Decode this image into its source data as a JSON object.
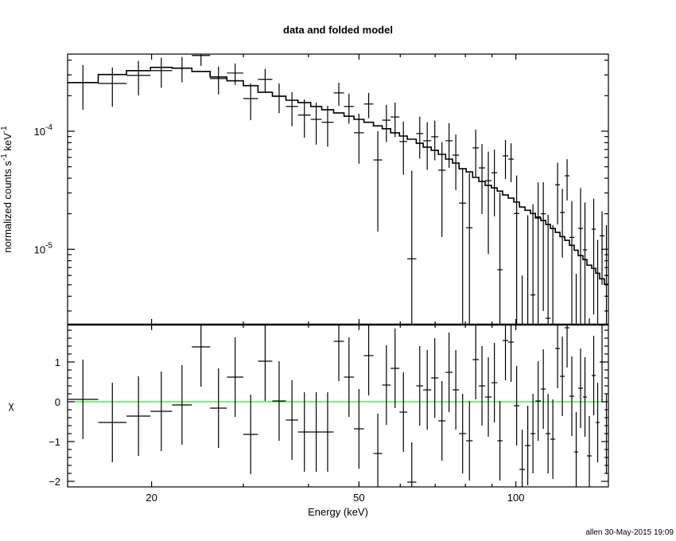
{
  "chart_data": [
    {
      "panel": "spectrum",
      "type": "line",
      "title": "data and folded model",
      "xlabel": "Energy (keV)",
      "ylabel": {
        "parts": [
          [
            "normalized counts s",
            ""
          ],
          [
            "-1",
            "sup"
          ],
          [
            " keV",
            ""
          ],
          [
            "-1",
            "sup"
          ]
        ]
      },
      "xscale": "log",
      "yscale": "log",
      "xlim": [
        13.8,
        150.5
      ],
      "ylim": [
        2.3e-06,
        0.00045
      ],
      "x_tick_labels": [
        {
          "value": 20,
          "label": "20"
        },
        {
          "value": 50,
          "label": "50"
        },
        {
          "value": 100,
          "label": "100"
        }
      ],
      "y_tick_labels": [
        {
          "value": 0.0001,
          "base": "10",
          "exp": "-4"
        },
        {
          "value": 1e-05,
          "base": "10",
          "exp": "-5"
        }
      ],
      "bin_edges": [
        13.8,
        15.8,
        17.9,
        19.9,
        21.9,
        23.9,
        25.9,
        27.9,
        30.0,
        32.0,
        34.1,
        36.2,
        38.2,
        40.4,
        42.4,
        44.7,
        46.8,
        48.9,
        51.1,
        53.3,
        55.4,
        57.5,
        59.8,
        61.9,
        64.4,
        66.4,
        68.8,
        71.0,
        73.3,
        75.6,
        77.8,
        80.3,
        82.6,
        84.9,
        87.3,
        89.8,
        92.1,
        94.3,
        96.7,
        99.1,
        101.6,
        104.1,
        106.7,
        109.0,
        111.7,
        114.1,
        116.5,
        119.0,
        121.5,
        124.1,
        126.7,
        129.4,
        131.7,
        134.5,
        136.9,
        139.8,
        142.3,
        144.8,
        147.9,
        150.5
      ],
      "data": [
        0.000258,
        0.000254,
        0.000297,
        0.000326,
        0.000342,
        0.000438,
        0.000279,
        0.000311,
        0.000189,
        0.000275,
        0.000198,
        0.000162,
        0.000137,
        0.000126,
        0.000119,
        0.000211,
        0.000162,
        9.7e-05,
        0.00017,
        5.71e-05,
        0.000124,
        0.000132,
        8.17e-05,
        8.3e-06,
        9.55e-05,
        8.3e-05,
        8.97e-05,
        4.67e-05,
        8.3e-05,
        6.27e-05,
        2.46e-05,
        1.52e-05,
        7.22e-05,
        4.89e-05,
        3.81e-05,
        4.45e-05,
        6.7e-06,
        6.18e-05,
        5.8e-05,
        2.01e-05,
        -1.9e-05,
        -6e-07,
        4.1e-06,
        1.88e-05,
        2e-05,
        2.6e-06,
        0,
        3.52e-05,
        2.05e-05,
        4.19e-05,
        1.26e-05,
        -7.8e-06,
        1.5e-05,
        9.9e-06,
        -1.04e-05,
        1.48e-05,
        0,
        1.3e-05,
        6e-06
      ],
      "errors": [
        0.000106,
        9.3e-05,
        9.6e-05,
        9.3e-05,
        8.3e-05,
        8e-05,
        7.4e-05,
        6.4e-05,
        6.5e-05,
        6.2e-05,
        5.6e-05,
        5.2e-05,
        4.9e-05,
        4.9e-05,
        4.5e-05,
        4.7e-05,
        4.6e-05,
        4.4e-05,
        4.1e-05,
        4.3e-05,
        4.3e-05,
        4.3e-05,
        3.9e-05,
        3.8e-05,
        3.7e-05,
        3.6e-05,
        3.3e-05,
        3.4e-05,
        3.4e-05,
        3.1e-05,
        2.35e-05,
        2.9e-05,
        3.1e-05,
        2.9e-05,
        2.9e-05,
        2.55e-05,
        2.35e-05,
        2.25e-05,
        2.1e-05,
        2.2e-05,
        2.5e-05,
        2e-05,
        2e-05,
        1.8e-05,
        1.7e-05,
        1.7e-05,
        1.6e-05,
        1.9e-05,
        1.2e-05,
        1.6e-05,
        1.3e-05,
        1.4e-05,
        1.8e-05,
        1.5e-05,
        1.3e-05,
        1.2e-05,
        1.2e-05,
        8e-06,
        1e-05
      ],
      "model": [
        0.000258,
        0.000302,
        0.000326,
        0.000347,
        0.000342,
        0.000321,
        0.000288,
        0.000267,
        0.000243,
        0.000214,
        0.000198,
        0.000183,
        0.000175,
        0.000162,
        0.000152,
        0.000143,
        0.000134,
        0.000126,
        0.000119,
        0.000111,
        0.000105,
        9.7e-05,
        9.1e-05,
        8.55e-05,
        7.9e-05,
        7.33e-05,
        6.89e-05,
        6.37e-05,
        5.8e-05,
        5.37e-05,
        4.81e-05,
        4.52e-05,
        4.06e-05,
        3.75e-05,
        3.47e-05,
        3.31e-05,
        3.11e-05,
        2.88e-05,
        2.71e-05,
        2.51e-05,
        2.28e-05,
        2.14e-05,
        2.01e-05,
        1.84e-05,
        1.75e-05,
        1.62e-05,
        1.5e-05,
        1.39e-05,
        1.28e-05,
        1.19e-05,
        1.08e-05,
        9.8e-06,
        8.83e-06,
        8.17e-06,
        7.33e-06,
        6.89e-06,
        6.27e-06,
        5.62e-06,
        5.05e-06
      ]
    },
    {
      "panel": "residuals",
      "type": "scatter",
      "ylabel": "χ",
      "xscale": "log",
      "xlim": [
        13.8,
        150.5
      ],
      "ylim": [
        -2.14,
        1.94
      ],
      "zero_line_color": "#00e000",
      "y_tick_labels": [
        {
          "value": 1,
          "label": "1"
        },
        {
          "value": 0,
          "label": "0"
        },
        {
          "value": -1,
          "label": "−1"
        },
        {
          "value": -2,
          "label": "−2"
        }
      ],
      "chi": [
        0.06,
        -0.52,
        -0.36,
        -0.24,
        -0.08,
        1.38,
        -0.16,
        0.62,
        -0.82,
        1.02,
        0.02,
        -0.46,
        -0.76,
        -0.76,
        -0.76,
        1.52,
        0.62,
        -0.68,
        1.16,
        -1.3,
        0.42,
        0.84,
        -0.26,
        -2.02,
        0.4,
        0.3,
        0.6,
        -0.48,
        0.74,
        0.3,
        -0.8,
        -0.98,
        1.06,
        0.4,
        0.12,
        0.48,
        -0.98,
        1.54,
        1.5,
        -0.1,
        -1.7,
        -1.1,
        -0.8,
        0.02,
        0.32,
        -0.8,
        -0.94,
        1.34,
        0.64,
        1.86,
        0.14,
        -1.26,
        0.34,
        0.12,
        -1.36,
        0.66,
        -0.52,
        1.0,
        -0.8
      ],
      "chi_errors": 1.0
    }
  ],
  "footer": "allen 30-May-2015 19:09"
}
